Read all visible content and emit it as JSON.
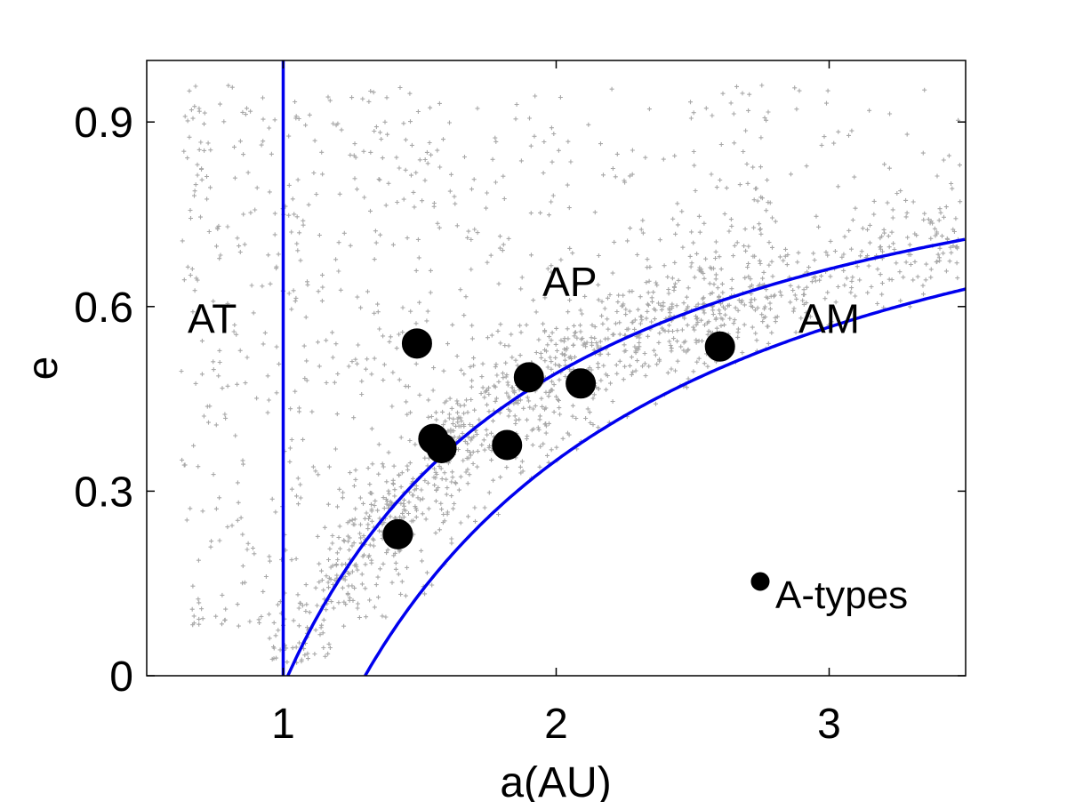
{
  "chart_data": {
    "type": "scatter",
    "xlabel": "a(AU)",
    "ylabel": "e",
    "xlim": [
      0.5,
      3.5
    ],
    "ylim": [
      0,
      1.0
    ],
    "x_ticks": [
      1,
      2,
      3
    ],
    "x_tick_labels": [
      "1",
      "2",
      "3"
    ],
    "y_ticks": [
      0,
      0.3,
      0.6,
      0.9
    ],
    "y_tick_labels": [
      "0",
      "0.3",
      "0.6",
      "0.9"
    ],
    "grid": false,
    "legend_position": "bottom-right",
    "colors": {
      "background_points": "#a8a8a8",
      "boundaries": "#0000ee",
      "a_types": "#000000"
    },
    "region_labels": [
      {
        "text": "AT",
        "x": 0.74,
        "y": 0.58
      },
      {
        "text": "AP",
        "x": 2.05,
        "y": 0.64
      },
      {
        "text": "AM",
        "x": 3.0,
        "y": 0.58
      }
    ],
    "boundaries": [
      {
        "type": "vertical",
        "x": 1.0
      },
      {
        "type": "perihelion",
        "q": 1.017
      },
      {
        "type": "perihelion",
        "q": 1.3
      }
    ],
    "series": [
      {
        "name": "A-types",
        "points": [
          {
            "x": 1.49,
            "y": 0.54
          },
          {
            "x": 1.55,
            "y": 0.385
          },
          {
            "x": 1.58,
            "y": 0.37
          },
          {
            "x": 1.82,
            "y": 0.375
          },
          {
            "x": 1.9,
            "y": 0.485
          },
          {
            "x": 2.09,
            "y": 0.475
          },
          {
            "x": 1.42,
            "y": 0.23
          },
          {
            "x": 2.6,
            "y": 0.535
          }
        ]
      }
    ],
    "legend": [
      {
        "label": "A-types"
      }
    ]
  }
}
